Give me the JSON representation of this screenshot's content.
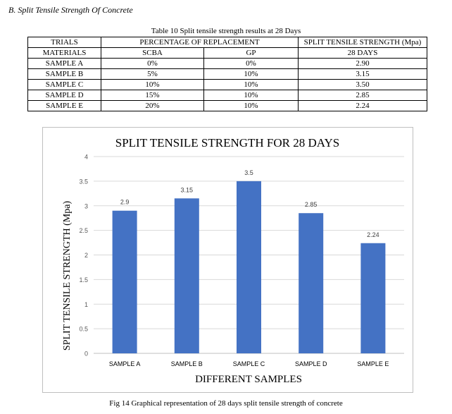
{
  "section_heading": "B.   Split Tensile Strength Of Concrete",
  "table": {
    "title": "Table 10 Split tensile strength results at 28 Days",
    "header": {
      "trials": "TRIALS",
      "percentage": "PERCENTAGE OF REPLACEMENT",
      "strength": "SPLIT TENSILE STRENGTH (Mpa)"
    },
    "subheader": {
      "materials": "MATERIALS",
      "scba": "SCBA",
      "gp": "GP",
      "days": "28 DAYS"
    },
    "rows": [
      [
        "SAMPLE A",
        "0%",
        "0%",
        "2.90"
      ],
      [
        "SAMPLE B",
        "5%",
        "10%",
        "3.15"
      ],
      [
        "SAMPLE C",
        "10%",
        "10%",
        "3.50"
      ],
      [
        "SAMPLE D",
        "15%",
        "10%",
        "2.85"
      ],
      [
        "SAMPLE E",
        "20%",
        "10%",
        "2.24"
      ]
    ]
  },
  "chart_data": {
    "type": "bar",
    "title": "SPLIT TENSILE STRENGTH FOR 28 DAYS",
    "xlabel": "DIFFERENT SAMPLES",
    "ylabel": "SPLIT TENSILE STRENGTH (Mpa)",
    "categories": [
      "SAMPLE A",
      "SAMPLE B",
      "SAMPLE C",
      "SAMPLE D",
      "SAMPLE E"
    ],
    "values": [
      2.9,
      3.15,
      3.5,
      2.85,
      2.24
    ],
    "data_labels": [
      "2.9",
      "3.15",
      "3.5",
      "2.85",
      "2.24"
    ],
    "ylim": [
      0,
      4
    ],
    "yticks": [
      0,
      0.5,
      1,
      1.5,
      2,
      2.5,
      3,
      3.5,
      4
    ],
    "grid": true,
    "legend": "none",
    "bar_color": "#4472c4",
    "grid_color": "#d9d9d9"
  },
  "caption": "Fig 14 Graphical representation of 28 days split tensile strength of concrete"
}
